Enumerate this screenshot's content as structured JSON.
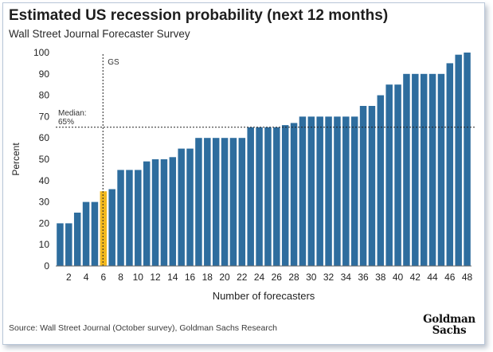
{
  "chart_data": {
    "type": "bar",
    "title": "Estimated US recession probability (next 12 months)",
    "subtitle": "Wall Street Journal Forecaster Survey",
    "xlabel": "Number of forecasters",
    "ylabel": "Percent",
    "ylim": [
      0,
      100
    ],
    "yticks": [
      "0",
      "10",
      "20",
      "30",
      "40",
      "50",
      "60",
      "70",
      "80",
      "90",
      "100"
    ],
    "xtick_labels": [
      "2",
      "4",
      "6",
      "8",
      "10",
      "12",
      "14",
      "16",
      "18",
      "20",
      "22",
      "24",
      "26",
      "28",
      "30",
      "32",
      "34",
      "36",
      "38",
      "40",
      "42",
      "44",
      "46",
      "48"
    ],
    "x": [
      1,
      2,
      3,
      4,
      5,
      6,
      7,
      8,
      9,
      10,
      11,
      12,
      13,
      14,
      15,
      16,
      17,
      18,
      19,
      20,
      21,
      22,
      23,
      24,
      25,
      26,
      27,
      28,
      29,
      30,
      31,
      32,
      33,
      34,
      35,
      36,
      37,
      38,
      39,
      40,
      41,
      42,
      43,
      44,
      45,
      46,
      47,
      48
    ],
    "values": [
      20,
      20,
      25,
      30,
      30,
      35,
      36,
      45,
      45,
      45,
      49,
      50,
      50,
      51,
      55,
      55,
      60,
      60,
      60,
      60,
      60,
      60,
      65,
      65,
      65,
      65,
      66,
      67,
      70,
      70,
      70,
      70,
      70,
      70,
      70,
      75,
      75,
      80,
      85,
      85,
      90,
      90,
      90,
      90,
      90,
      95,
      99,
      100
    ],
    "highlight_index": 5,
    "highlight_color": "#f2b81d",
    "bar_color": "#2e6d9e",
    "median": {
      "value": 65,
      "label_line1": "Median:",
      "label_line2": "65%"
    },
    "gs_marker": {
      "x": 6,
      "label": "GS"
    },
    "grid": false,
    "legend": "none"
  },
  "source": "Source: Wall Street Journal (October survey), Goldman Sachs Research",
  "logo": {
    "line1": "Goldman",
    "line2": "Sachs"
  }
}
